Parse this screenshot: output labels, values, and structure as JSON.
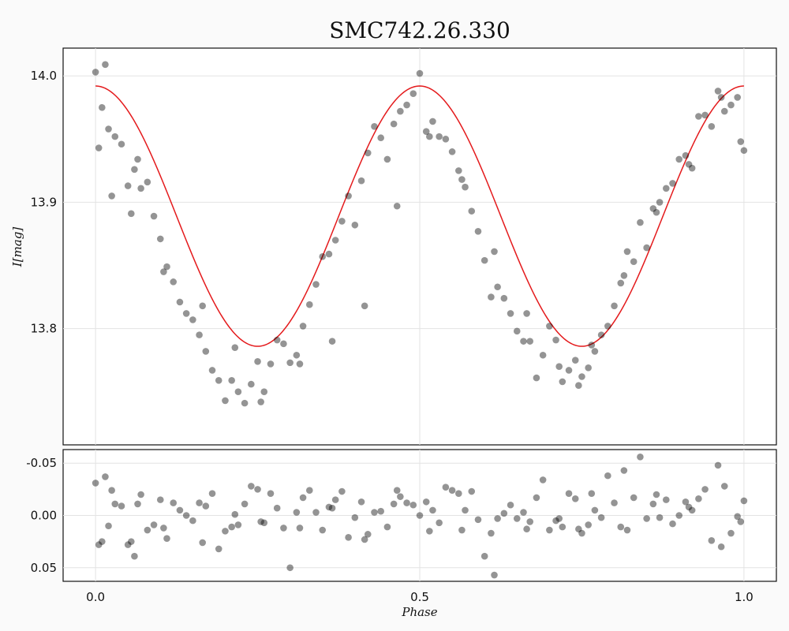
{
  "chart_data": [
    {
      "type": "scatter",
      "title": "SMC742.26.330",
      "xlabel": "",
      "ylabel": "I[mag]",
      "xlim": [
        -0.05,
        1.05
      ],
      "ylim": [
        14.022,
        13.708
      ],
      "y_inverted": true,
      "grid": true,
      "xticks": [
        0.0,
        0.5,
        1.0
      ],
      "yticks": [
        13.8,
        13.9,
        14.0
      ],
      "ytick_labels": [
        "13.8",
        "13.9",
        "14.0"
      ],
      "marker_color": "#000000",
      "model_color": "#e41a1c",
      "series": [
        {
          "kind": "points",
          "x": [
            0.0,
            0.005,
            0.01,
            0.015,
            0.02,
            0.03,
            0.04,
            0.05,
            0.06,
            0.065,
            0.07,
            0.08,
            0.09,
            0.1,
            0.11,
            0.12,
            0.13,
            0.14,
            0.15,
            0.16,
            0.17,
            0.18,
            0.19,
            0.2,
            0.21,
            0.22,
            0.23,
            0.24,
            0.25,
            0.255,
            0.26,
            0.27,
            0.28,
            0.29,
            0.3,
            0.31,
            0.32,
            0.33,
            0.34,
            0.35,
            0.36,
            0.37,
            0.38,
            0.39,
            0.4,
            0.41,
            0.42,
            0.43,
            0.44,
            0.45,
            0.46,
            0.47,
            0.48,
            0.49,
            0.5,
            0.51,
            0.52,
            0.53,
            0.54,
            0.55,
            0.56,
            0.57,
            0.58,
            0.59,
            0.6,
            0.61,
            0.62,
            0.63,
            0.64,
            0.65,
            0.66,
            0.67,
            0.68,
            0.69,
            0.7,
            0.71,
            0.72,
            0.73,
            0.74,
            0.745,
            0.75,
            0.76,
            0.77,
            0.78,
            0.79,
            0.8,
            0.81,
            0.82,
            0.83,
            0.84,
            0.85,
            0.86,
            0.87,
            0.88,
            0.89,
            0.9,
            0.91,
            0.92,
            0.93,
            0.94,
            0.95,
            0.96,
            0.97,
            0.98,
            0.99,
            1.0,
            0.025,
            0.055,
            0.105,
            0.165,
            0.215,
            0.315,
            0.365,
            0.415,
            0.465,
            0.515,
            0.565,
            0.615,
            0.665,
            0.715,
            0.765,
            0.815,
            0.865,
            0.915,
            0.965,
            0.995
          ],
          "y": [
            14.003,
            13.943,
            13.975,
            14.009,
            13.958,
            13.952,
            13.946,
            13.913,
            13.926,
            13.934,
            13.911,
            13.916,
            13.889,
            13.871,
            13.849,
            13.837,
            13.821,
            13.812,
            13.807,
            13.795,
            13.782,
            13.767,
            13.759,
            13.743,
            13.759,
            13.75,
            13.741,
            13.756,
            13.774,
            13.742,
            13.75,
            13.772,
            13.791,
            13.788,
            13.773,
            13.779,
            13.802,
            13.819,
            13.835,
            13.857,
            13.859,
            13.87,
            13.885,
            13.905,
            13.882,
            13.917,
            13.939,
            13.96,
            13.951,
            13.934,
            13.962,
            13.972,
            13.977,
            13.986,
            14.002,
            13.956,
            13.964,
            13.952,
            13.95,
            13.94,
            13.925,
            13.912,
            13.893,
            13.877,
            13.854,
            13.825,
            13.833,
            13.824,
            13.812,
            13.798,
            13.79,
            13.79,
            13.761,
            13.779,
            13.802,
            13.791,
            13.758,
            13.767,
            13.775,
            13.755,
            13.762,
            13.769,
            13.782,
            13.795,
            13.802,
            13.818,
            13.836,
            13.861,
            13.853,
            13.884,
            13.864,
            13.895,
            13.9,
            13.911,
            13.915,
            13.934,
            13.937,
            13.927,
            13.968,
            13.969,
            13.96,
            13.988,
            13.972,
            13.977,
            13.983,
            13.941,
            13.905,
            13.891,
            13.845,
            13.818,
            13.785,
            13.772,
            13.79,
            13.818,
            13.897,
            13.952,
            13.918,
            13.861,
            13.812,
            13.77,
            13.787,
            13.842,
            13.892,
            13.93,
            13.983,
            13.948
          ]
        },
        {
          "kind": "model",
          "amplitude_mag": 0.103,
          "period_fraction": 0.5,
          "mean_mag": 13.889,
          "offset": 0.0
        }
      ]
    },
    {
      "type": "scatter",
      "title": "",
      "xlabel": "Phase",
      "ylabel": "",
      "xlim": [
        -0.05,
        1.05
      ],
      "ylim": [
        -0.063,
        0.063
      ],
      "grid": true,
      "xticks": [
        0.0,
        0.5,
        1.0
      ],
      "xtick_labels": [
        "0.0",
        "0.5",
        "1.0"
      ],
      "yticks": [
        0.05,
        0.0,
        -0.05
      ],
      "ytick_labels": [
        "0.05",
        "0.00",
        "-0.05"
      ],
      "series": [
        {
          "kind": "residuals",
          "x": [
            0.0,
            0.005,
            0.01,
            0.015,
            0.02,
            0.03,
            0.04,
            0.05,
            0.06,
            0.065,
            0.07,
            0.08,
            0.09,
            0.1,
            0.11,
            0.12,
            0.13,
            0.14,
            0.15,
            0.16,
            0.17,
            0.18,
            0.19,
            0.2,
            0.21,
            0.22,
            0.23,
            0.24,
            0.25,
            0.255,
            0.26,
            0.27,
            0.28,
            0.29,
            0.3,
            0.31,
            0.32,
            0.33,
            0.34,
            0.35,
            0.36,
            0.37,
            0.38,
            0.39,
            0.4,
            0.41,
            0.42,
            0.43,
            0.44,
            0.45,
            0.46,
            0.47,
            0.48,
            0.49,
            0.5,
            0.51,
            0.52,
            0.53,
            0.54,
            0.55,
            0.56,
            0.57,
            0.58,
            0.59,
            0.6,
            0.61,
            0.62,
            0.63,
            0.64,
            0.65,
            0.66,
            0.67,
            0.68,
            0.69,
            0.7,
            0.71,
            0.72,
            0.73,
            0.74,
            0.745,
            0.75,
            0.76,
            0.77,
            0.78,
            0.79,
            0.8,
            0.81,
            0.82,
            0.83,
            0.84,
            0.85,
            0.86,
            0.87,
            0.88,
            0.89,
            0.9,
            0.91,
            0.92,
            0.93,
            0.94,
            0.95,
            0.96,
            0.97,
            0.98,
            0.99,
            1.0,
            0.025,
            0.055,
            0.105,
            0.165,
            0.215,
            0.315,
            0.365,
            0.415,
            0.465,
            0.515,
            0.565,
            0.615,
            0.665,
            0.715,
            0.765,
            0.815,
            0.865,
            0.915,
            0.965,
            0.995
          ],
          "y": [
            -0.031,
            0.028,
            0.025,
            -0.037,
            0.01,
            -0.011,
            -0.009,
            0.028,
            0.039,
            -0.011,
            -0.02,
            0.014,
            0.009,
            -0.015,
            0.022,
            -0.012,
            -0.005,
            0.0,
            0.005,
            -0.012,
            -0.009,
            -0.021,
            0.032,
            0.015,
            0.011,
            0.009,
            -0.011,
            -0.028,
            -0.025,
            0.006,
            0.007,
            -0.021,
            -0.007,
            0.012,
            0.05,
            -0.003,
            -0.017,
            -0.024,
            -0.003,
            0.014,
            -0.008,
            -0.015,
            -0.023,
            0.021,
            0.002,
            -0.013,
            0.018,
            -0.003,
            -0.004,
            0.011,
            -0.011,
            -0.018,
            -0.012,
            -0.01,
            0.0,
            -0.013,
            -0.005,
            0.007,
            -0.027,
            -0.024,
            -0.021,
            -0.005,
            -0.023,
            0.004,
            0.039,
            0.017,
            0.003,
            -0.002,
            -0.01,
            0.003,
            -0.003,
            0.006,
            -0.017,
            -0.034,
            0.014,
            0.005,
            0.011,
            -0.021,
            -0.016,
            0.013,
            0.017,
            0.009,
            -0.005,
            0.002,
            -0.038,
            -0.012,
            0.011,
            0.014,
            -0.017,
            -0.056,
            0.003,
            -0.011,
            0.002,
            -0.015,
            0.008,
            0.0,
            -0.013,
            -0.005,
            -0.016,
            -0.025,
            0.024,
            -0.048,
            -0.028,
            0.017,
            0.001,
            -0.014,
            -0.024,
            0.025,
            0.012,
            0.026,
            -0.001,
            0.012,
            -0.007,
            0.023,
            -0.024,
            0.015,
            0.014,
            0.057,
            0.013,
            0.003,
            -0.021,
            -0.043,
            -0.02,
            -0.008,
            0.03,
            0.006
          ]
        }
      ]
    }
  ]
}
